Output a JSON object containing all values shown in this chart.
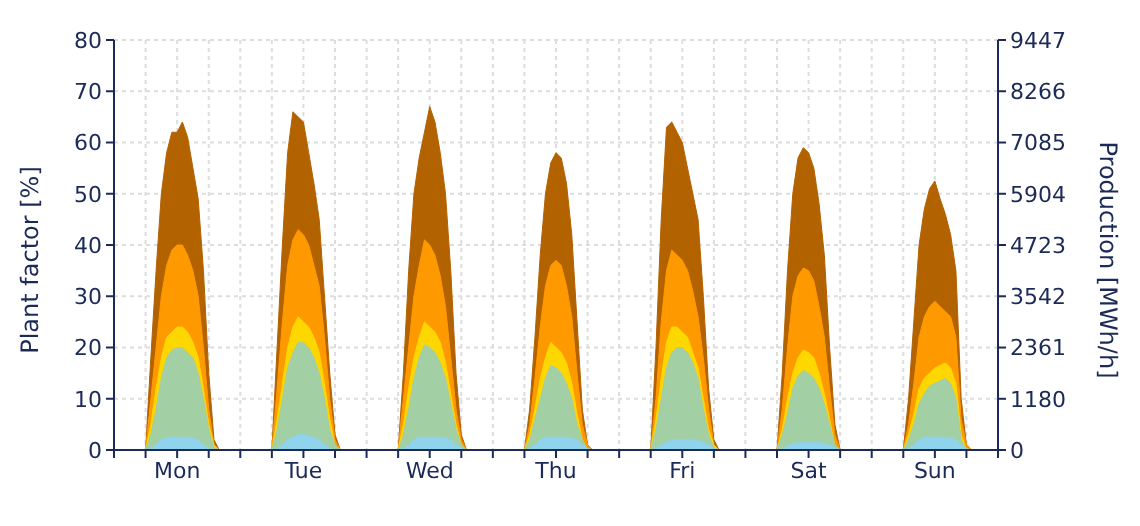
{
  "chart_data": {
    "type": "area",
    "ylabel": "Plant factor [%]",
    "y2label": "Production [MWh/h]",
    "categories": [
      null,
      null,
      null,
      null,
      null,
      null,
      null,
      null,
      null,
      null,
      null,
      null,
      "Mon",
      null,
      null,
      null,
      null,
      null,
      null,
      null,
      null,
      null,
      null,
      null,
      null,
      null,
      null,
      null,
      null,
      null,
      null,
      null,
      null,
      null,
      null,
      null,
      "Tue",
      null,
      null,
      null,
      null,
      null,
      null,
      null,
      null,
      null,
      null,
      null,
      null,
      null,
      null,
      null,
      null,
      null,
      null,
      null,
      null,
      null,
      null,
      null,
      "Wed",
      null,
      null,
      null,
      null,
      null,
      null,
      null,
      null,
      null,
      null,
      null,
      null,
      null,
      null,
      null,
      null,
      null,
      null,
      null,
      null,
      null,
      null,
      null,
      "Thu",
      null,
      null,
      null,
      null,
      null,
      null,
      null,
      null,
      null,
      null,
      null,
      null,
      null,
      null,
      null,
      null,
      null,
      null,
      null,
      null,
      null,
      null,
      null,
      "Fri",
      null,
      null,
      null,
      null,
      null,
      null,
      null,
      null,
      null,
      null,
      null,
      null,
      null,
      null,
      null,
      null,
      null,
      null,
      null,
      null,
      null,
      null,
      null,
      "Sat",
      null,
      null,
      null,
      null,
      null,
      null,
      null,
      null,
      null,
      null,
      null,
      null,
      null,
      null,
      null,
      null,
      null,
      null,
      null,
      null,
      null,
      null,
      null,
      "Sun",
      null,
      null,
      null,
      null,
      null,
      null,
      null,
      null,
      null,
      null,
      null
    ],
    "series": [
      {
        "color": "#b36200",
        "values": [
          0,
          0,
          0,
          0,
          0,
          0,
          0,
          18,
          35,
          50,
          58,
          62,
          62,
          64,
          61,
          55,
          49,
          35,
          15,
          2,
          0,
          0,
          0,
          0,
          0,
          0,
          0,
          0,
          0,
          0,
          0,
          20,
          40,
          58,
          66,
          65,
          64,
          58,
          52,
          45,
          30,
          15,
          3,
          0,
          0,
          0,
          0,
          0,
          0,
          0,
          0,
          0,
          0,
          0,
          0,
          15,
          35,
          50,
          57,
          62,
          67,
          64,
          58,
          50,
          35,
          15,
          3,
          0,
          0,
          0,
          0,
          0,
          0,
          0,
          0,
          0,
          0,
          0,
          0,
          8,
          22,
          38,
          50,
          56,
          58,
          57,
          52,
          42,
          25,
          8,
          1,
          0,
          0,
          0,
          0,
          0,
          0,
          0,
          0,
          0,
          0,
          0,
          0,
          20,
          45,
          63,
          64,
          62,
          60,
          55,
          50,
          45,
          30,
          12,
          2,
          0,
          0,
          0,
          0,
          0,
          0,
          0,
          0,
          0,
          0,
          0,
          0,
          15,
          35,
          50,
          57,
          59,
          58,
          55,
          48,
          38,
          20,
          5,
          0,
          0,
          0,
          0,
          0,
          0,
          0,
          0,
          0,
          0,
          0,
          0,
          0,
          10,
          25,
          40,
          47,
          51,
          52.5,
          49,
          46,
          42,
          35,
          10,
          1,
          0,
          0,
          0,
          0,
          0
        ]
      },
      {
        "color": "#ff9900",
        "values": [
          0,
          0,
          0,
          0,
          0,
          0,
          0,
          10,
          20,
          30,
          36,
          39,
          40,
          40,
          38,
          35,
          30,
          20,
          8,
          1,
          0,
          0,
          0,
          0,
          0,
          0,
          0,
          0,
          0,
          0,
          0,
          12,
          25,
          36,
          41,
          43,
          42,
          40,
          36,
          32,
          22,
          10,
          2,
          0,
          0,
          0,
          0,
          0,
          0,
          0,
          0,
          0,
          0,
          0,
          0,
          10,
          20,
          30,
          36,
          41,
          40,
          38,
          34,
          28,
          18,
          8,
          2,
          0,
          0,
          0,
          0,
          0,
          0,
          0,
          0,
          0,
          0,
          0,
          0,
          5,
          14,
          24,
          32,
          36,
          37,
          36,
          32,
          26,
          15,
          5,
          1,
          0,
          0,
          0,
          0,
          0,
          0,
          0,
          0,
          0,
          0,
          0,
          0,
          10,
          25,
          35,
          39,
          38,
          37,
          35,
          31,
          26,
          18,
          8,
          1,
          0,
          0,
          0,
          0,
          0,
          0,
          0,
          0,
          0,
          0,
          0,
          0,
          8,
          20,
          30,
          34,
          35.5,
          35,
          33,
          28,
          22,
          12,
          3,
          0,
          0,
          0,
          0,
          0,
          0,
          0,
          0,
          0,
          0,
          0,
          0,
          0,
          5,
          13,
          22,
          26,
          28,
          29,
          28,
          27,
          26,
          22,
          6,
          1,
          0,
          0,
          0,
          0,
          0
        ]
      },
      {
        "color": "#ffd700",
        "values": [
          0,
          0,
          0,
          0,
          0,
          0,
          0,
          5,
          12,
          18,
          22,
          23,
          24,
          24,
          23,
          21,
          18,
          12,
          5,
          1,
          0,
          0,
          0,
          0,
          0,
          0,
          0,
          0,
          0,
          0,
          0,
          6,
          13,
          20,
          24,
          26,
          25,
          24,
          22,
          19,
          13,
          6,
          1,
          0,
          0,
          0,
          0,
          0,
          0,
          0,
          0,
          0,
          0,
          0,
          0,
          5,
          12,
          18,
          22,
          25,
          24,
          23,
          21,
          17,
          11,
          5,
          1,
          0,
          0,
          0,
          0,
          0,
          0,
          0,
          0,
          0,
          0,
          0,
          0,
          3,
          8,
          14,
          18,
          21,
          20,
          19,
          17,
          13,
          7,
          2,
          0,
          0,
          0,
          0,
          0,
          0,
          0,
          0,
          0,
          0,
          0,
          0,
          0,
          6,
          14,
          21,
          24,
          24,
          23,
          22,
          19,
          16,
          10,
          4,
          1,
          0,
          0,
          0,
          0,
          0,
          0,
          0,
          0,
          0,
          0,
          0,
          0,
          4,
          10,
          15,
          18,
          19.5,
          19,
          18,
          15,
          11,
          6,
          1,
          0,
          0,
          0,
          0,
          0,
          0,
          0,
          0,
          0,
          0,
          0,
          0,
          0,
          3,
          7,
          12,
          14,
          15,
          16,
          16.5,
          17,
          16,
          13,
          3,
          0,
          0,
          0,
          0,
          0,
          0
        ]
      },
      {
        "color": "#a2cfa3",
        "values": [
          0,
          0,
          0,
          0,
          0,
          0,
          0,
          3,
          8,
          14,
          18,
          19.5,
          20,
          20,
          19,
          18,
          15,
          10,
          4,
          0.5,
          0,
          0,
          0,
          0,
          0,
          0,
          0,
          0,
          0,
          0,
          0,
          4,
          10,
          16,
          19,
          21,
          21,
          20,
          18,
          15,
          10,
          4,
          1,
          0,
          0,
          0,
          0,
          0,
          0,
          0,
          0,
          0,
          0,
          0,
          0,
          3,
          8,
          14,
          18,
          20.5,
          20,
          19,
          17,
          14,
          9,
          4,
          1,
          0,
          0,
          0,
          0,
          0,
          0,
          0,
          0,
          0,
          0,
          0,
          0,
          2,
          6,
          10,
          14,
          16.5,
          16,
          15,
          13,
          10,
          5,
          2,
          0,
          0,
          0,
          0,
          0,
          0,
          0,
          0,
          0,
          0,
          0,
          0,
          0,
          4,
          10,
          16,
          19,
          20,
          20,
          19,
          17,
          14,
          8,
          3,
          0.5,
          0,
          0,
          0,
          0,
          0,
          0,
          0,
          0,
          0,
          0,
          0,
          0,
          3,
          7,
          12,
          14.5,
          15.5,
          15,
          14,
          12,
          9,
          5,
          1,
          0,
          0,
          0,
          0,
          0,
          0,
          0,
          0,
          0,
          0,
          0,
          0,
          0,
          2,
          5,
          9,
          11,
          12.5,
          13,
          13.5,
          14,
          13,
          10,
          2,
          0,
          0,
          0,
          0,
          0,
          0
        ]
      },
      {
        "color": "#8fd3ec",
        "values": [
          0,
          0,
          0,
          0,
          0,
          0,
          0,
          0.3,
          1,
          2,
          2.5,
          2.5,
          2.5,
          2.5,
          2.5,
          2.3,
          2,
          1,
          0.3,
          0,
          0,
          0,
          0,
          0,
          0,
          0,
          0,
          0,
          0,
          0,
          0,
          0.3,
          1,
          2,
          2.5,
          3,
          3,
          2.8,
          2.5,
          2,
          1,
          0.3,
          0,
          0,
          0,
          0,
          0,
          0,
          0,
          0,
          0,
          0,
          0,
          0,
          0,
          0.3,
          1,
          2,
          2.5,
          2.5,
          2.5,
          2.5,
          2.5,
          2.3,
          2,
          1,
          0.3,
          0,
          0,
          0,
          0,
          0,
          0,
          0,
          0,
          0,
          0,
          0,
          0,
          0.3,
          1,
          2,
          2.5,
          2.5,
          2.5,
          2.5,
          2.5,
          2.3,
          2,
          1,
          0.3,
          0,
          0,
          0,
          0,
          0,
          0,
          0,
          0,
          0,
          0,
          0,
          0,
          0.3,
          1,
          1.5,
          2,
          2,
          2,
          2,
          2,
          1.8,
          1.5,
          1,
          0.3,
          0,
          0,
          0,
          0,
          0,
          0,
          0,
          0,
          0,
          0,
          0,
          0,
          0.3,
          0.8,
          1.2,
          1.5,
          1.5,
          1.5,
          1.5,
          1.5,
          1.2,
          1,
          0.5,
          0,
          0,
          0,
          0,
          0,
          0,
          0,
          0,
          0,
          0,
          0,
          0,
          0,
          0.3,
          1,
          2,
          2.5,
          2.5,
          2.5,
          2.5,
          2.5,
          2.3,
          2,
          1,
          0.3,
          0,
          0,
          0,
          0,
          0
        ]
      }
    ],
    "ylim": [
      0,
      80
    ],
    "yticks": [
      0,
      10,
      20,
      30,
      40,
      50,
      60,
      70,
      80
    ],
    "y2lim": [
      0,
      9447
    ],
    "y2ticks": [
      0,
      1180,
      2361,
      3542,
      4723,
      5904,
      7085,
      8266,
      9447
    ],
    "grid": true,
    "legend": false
  }
}
